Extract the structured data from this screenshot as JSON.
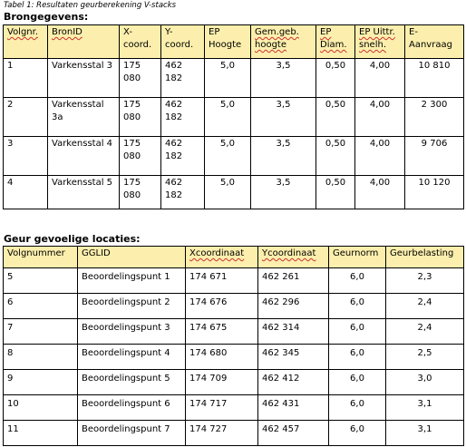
{
  "caption": "Tabel 1: Resultaten geurberekening V-stacks",
  "section1_title": "Brongegevens:",
  "table1": {
    "headers": [
      "Volgnr.",
      "BronID",
      "X-coord.",
      "Y-coord.",
      "EP Hoogte",
      "Gem.geb. hoogte",
      "EP Diam.",
      "EP Uittr. snelh.",
      "E-Aanvraag"
    ],
    "rows": [
      [
        "1",
        "Varkensstal 3",
        "175 080",
        "462 182",
        "5,0",
        "3,5",
        "0,50",
        "4,00",
        "10 810"
      ],
      [
        "2",
        "Varkensstal 3a",
        "175 080",
        "462 182",
        "5,0",
        "3,5",
        "0,50",
        "4,00",
        "2 300"
      ],
      [
        "3",
        "Varkensstal 4",
        "175 080",
        "462 182",
        "5,0",
        "3,5",
        "0,50",
        "4,00",
        "9 706"
      ],
      [
        "4",
        "Varkensstal 5",
        "175 080",
        "462 182",
        "5,0",
        "3,5",
        "0,50",
        "4,00",
        "10 120"
      ]
    ]
  },
  "section2_title": "Geur gevoelige locaties:",
  "table2": {
    "headers": [
      "Volgnummer",
      "GGLID",
      "Xcoordinaat",
      "Ycoordinaat",
      "Geurnorm",
      "Geurbelasting"
    ],
    "rows": [
      [
        "5",
        "Beoordelingspunt 1",
        "174 671",
        "462 261",
        "6,0",
        "2,3"
      ],
      [
        "6",
        "Beoordelingspunt 2",
        "174 676",
        "462 296",
        "6,0",
        "2,4"
      ],
      [
        "7",
        "Beoordelingspunt 3",
        "174 675",
        "462 314",
        "6,0",
        "2,4"
      ],
      [
        "8",
        "Beoordelingspunt 4",
        "174 680",
        "462 345",
        "6,0",
        "2,5"
      ],
      [
        "9",
        "Beoordelingspunt 5",
        "174 709",
        "462 412",
        "6,0",
        "3,0"
      ],
      [
        "10",
        "Beoordelingspunt 6",
        "174 717",
        "462 431",
        "6,0",
        "3,1"
      ],
      [
        "11",
        "Beoordelingspunt 7",
        "174 727",
        "462 457",
        "6,0",
        "3,1"
      ]
    ]
  }
}
